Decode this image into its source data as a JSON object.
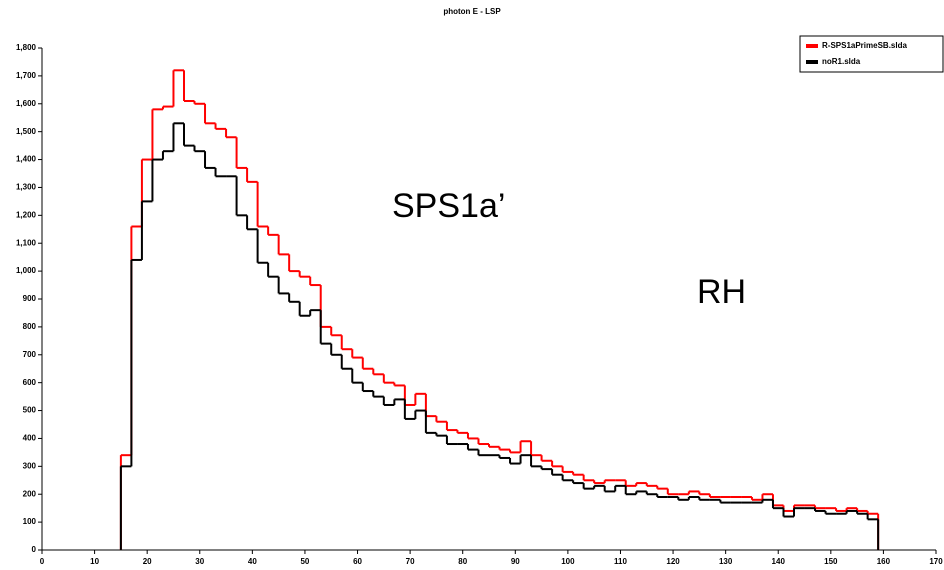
{
  "chart_data": {
    "type": "histogram",
    "title": "photon E - LSP",
    "bins": [
      15,
      17,
      19,
      21,
      23,
      25,
      27,
      29,
      31,
      33,
      35,
      37,
      39,
      41,
      43,
      45,
      47,
      49,
      51,
      53,
      55,
      57,
      59,
      61,
      63,
      65,
      67,
      69,
      71,
      73,
      75,
      77,
      79,
      81,
      83,
      85,
      87,
      89,
      91,
      93,
      95,
      97,
      99,
      101,
      103,
      105,
      107,
      109,
      111,
      113,
      115,
      117,
      119,
      121,
      123,
      125,
      127,
      129,
      131,
      133,
      135,
      137,
      139,
      141,
      143,
      145,
      147,
      149,
      151,
      153,
      155,
      157,
      159
    ],
    "series": [
      {
        "name": "R-SPS1aPrimeSB.slda",
        "color": "#ff0000",
        "values": [
          340,
          1160,
          1400,
          1580,
          1590,
          1720,
          1610,
          1600,
          1530,
          1510,
          1480,
          1370,
          1320,
          1160,
          1130,
          1060,
          1000,
          980,
          950,
          800,
          770,
          720,
          690,
          650,
          630,
          600,
          590,
          520,
          560,
          480,
          460,
          430,
          420,
          400,
          380,
          370,
          360,
          350,
          390,
          340,
          320,
          300,
          280,
          270,
          250,
          240,
          250,
          250,
          230,
          240,
          230,
          220,
          200,
          200,
          210,
          200,
          190,
          190,
          190,
          190,
          180,
          200,
          160,
          140,
          160,
          160,
          150,
          150,
          140,
          150,
          140,
          130
        ]
      },
      {
        "name": "noR1.slda",
        "color": "#000000",
        "values": [
          300,
          1040,
          1250,
          1400,
          1430,
          1530,
          1450,
          1430,
          1370,
          1340,
          1340,
          1200,
          1150,
          1030,
          980,
          920,
          890,
          840,
          860,
          740,
          700,
          650,
          600,
          570,
          550,
          520,
          540,
          470,
          500,
          420,
          410,
          380,
          380,
          360,
          340,
          340,
          330,
          310,
          340,
          300,
          290,
          270,
          250,
          240,
          220,
          230,
          210,
          230,
          200,
          210,
          200,
          190,
          190,
          180,
          190,
          180,
          180,
          170,
          170,
          170,
          170,
          180,
          150,
          120,
          150,
          150,
          140,
          130,
          130,
          140,
          130,
          110
        ]
      }
    ],
    "xlim": [
      0,
      170
    ],
    "xticks": [
      0,
      10,
      20,
      30,
      40,
      50,
      60,
      70,
      80,
      90,
      100,
      110,
      120,
      130,
      140,
      150,
      160,
      170
    ],
    "ylim": [
      0,
      1800
    ],
    "yticks": [
      0,
      100,
      200,
      300,
      400,
      500,
      600,
      700,
      800,
      900,
      {
        "value": 1000,
        "label": "1,000"
      },
      {
        "value": 1100,
        "label": "1,100"
      },
      {
        "value": 1200,
        "label": "1,200"
      },
      {
        "value": 1300,
        "label": "1,300"
      },
      {
        "value": 1400,
        "label": "1,400"
      },
      {
        "value": 1500,
        "label": "1,500"
      },
      {
        "value": 1600,
        "label": "1,600"
      },
      {
        "value": 1700,
        "label": "1,700"
      },
      {
        "value": 1800,
        "label": "1,800"
      }
    ],
    "annotations": [
      "SPS1a’",
      "RH"
    ],
    "legend": "top-right"
  }
}
